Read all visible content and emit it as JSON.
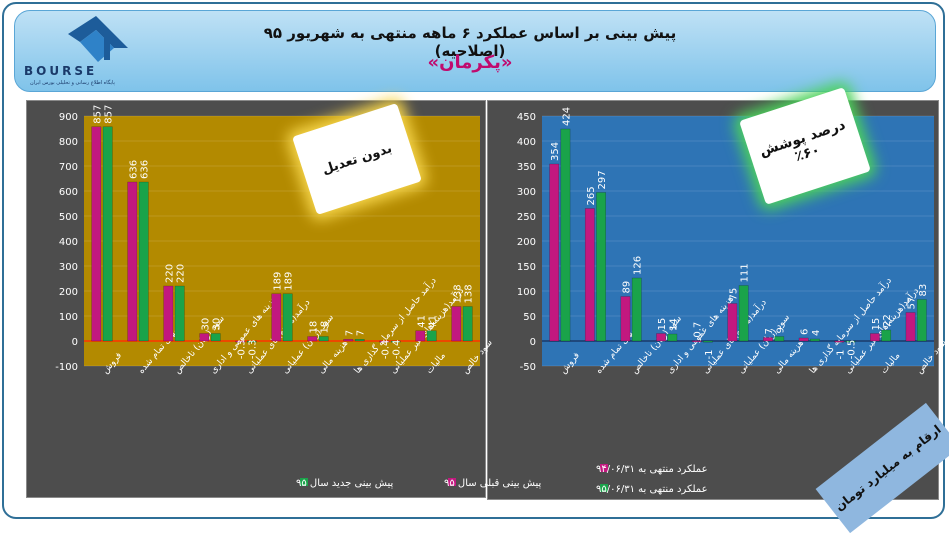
{
  "header": {
    "title": "پیش بینی بر اساس عملکرد ۶ ماهه منتهی به شهریور ۹۵ (اصلاحیه)",
    "symbol": "«پکرمان»",
    "logo_text": "BOURSE",
    "logo_sub": "پایگاه اطلاع رسانی و تحلیلی بورس ایران"
  },
  "badges": {
    "left": "بدون تعدیل",
    "right_line1": "درصد پوشش",
    "right_line2": "٪۶۰"
  },
  "note": "ارقام به میلیارد تومان",
  "colors": {
    "pink": "#c2187f",
    "green": "#1aa34a",
    "left_plot": "#b38a00",
    "right_plot": "#2e74b5"
  },
  "chart_data": [
    {
      "type": "bar",
      "categories": [
        "فروش",
        "بهای تمام شده",
        "سود (زیان) ناخالص",
        "هزینه های عمومی و اداری",
        "درآمد(هزینه)های عملیاتی",
        "سود (زیان) عملیاتی",
        "هزینه مالی",
        "درآمد حاصل از سرمایه گذاری ها",
        "درآمد(هزینه)های غیر عملیاتی",
        "مالیات",
        "سود خالص"
      ],
      "series": [
        {
          "name": "پیش بینی قبلی سال ۹۵",
          "values": [
            857,
            636,
            220,
            30,
            -0.3,
            189,
            18,
            7,
            -0.4,
            41,
            138
          ],
          "labels": [
            "857",
            "636",
            "220",
            "30",
            "-0.3",
            "189",
            "18",
            "7",
            "-0.4",
            "41",
            "138"
          ]
        },
        {
          "name": "پیش بینی جدید سال ۹۵",
          "values": [
            857,
            636,
            220,
            30,
            -0.3,
            189,
            18,
            7,
            -0.4,
            41,
            138
          ],
          "labels": [
            "857",
            "636",
            "220",
            "30",
            "-0.3",
            "189",
            "18",
            "7",
            "-0.4",
            "41",
            "138"
          ]
        }
      ],
      "yticks": [
        "900",
        "800",
        "700",
        "600",
        "500",
        "400",
        "300",
        "200",
        "100",
        "0",
        "-100"
      ],
      "ylim": [
        -100,
        900
      ]
    },
    {
      "type": "bar",
      "categories": [
        "فروش",
        "بهای تمام شده",
        "سود (زیان) ناخالص",
        "هزینه های عمومی و اداری",
        "درآمد(هزینه)های عملیاتی",
        "سود (زیان) عملیاتی",
        "هزینه مالی",
        "درآمد حاصل از سرمایه گذاری ها",
        "درآمد(هزینه)های غیر عملیاتی",
        "مالیات",
        "سود خالص"
      ],
      "series": [
        {
          "name": "عملکرد منتهی به ۹۴/۰۶/۳۱",
          "values": [
            354,
            265,
            89,
            15,
            0.7,
            75,
            7,
            6,
            -1,
            15,
            57
          ],
          "labels": [
            "354",
            "265",
            "89",
            "15",
            "0.7",
            "75",
            "7",
            "6",
            "-1",
            "15",
            "57"
          ]
        },
        {
          "name": "عملکرد منتهی به ۹۵/۰۶/۳۱",
          "values": [
            424,
            297,
            126,
            14,
            -1,
            111,
            9,
            4,
            -0.5,
            22,
            83
          ],
          "labels": [
            "424",
            "297",
            "126",
            "14",
            "-1",
            "111",
            "9",
            "4",
            "-0.5",
            "22",
            "83"
          ]
        }
      ],
      "yticks": [
        "450",
        "400",
        "350",
        "300",
        "250",
        "200",
        "150",
        "100",
        "50",
        "0",
        "-50"
      ],
      "ylim": [
        -50,
        450
      ]
    }
  ]
}
